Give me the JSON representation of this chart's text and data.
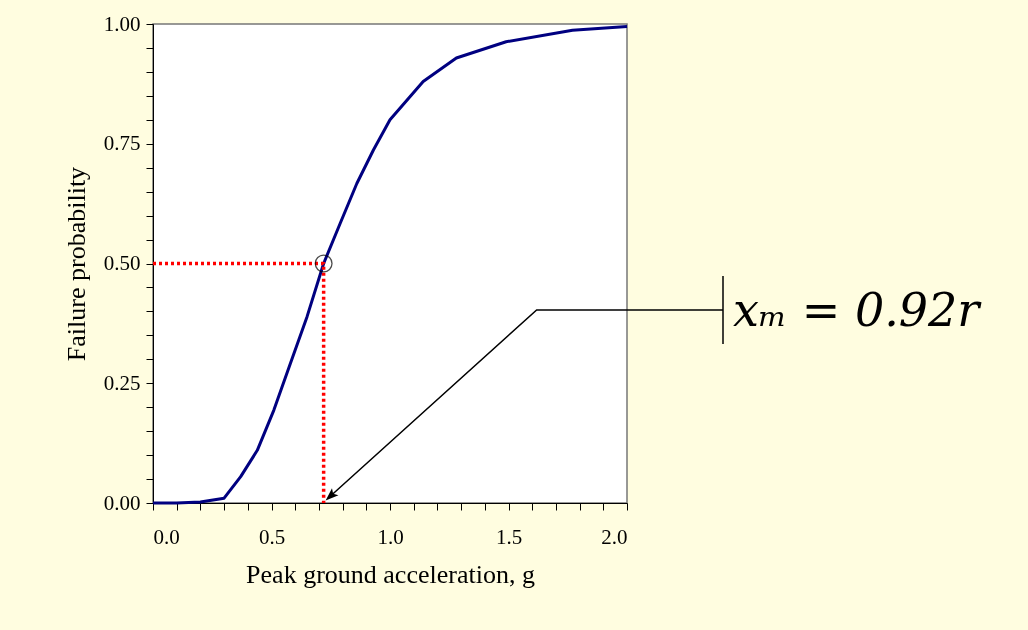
{
  "chart_data": {
    "type": "line",
    "xlabel": "Peak ground acceleration, g",
    "ylabel": "Failure probability",
    "xlim": [
      0,
      2.0
    ],
    "ylim": [
      0,
      1.0
    ],
    "xticks": [
      {
        "value": 0,
        "label": "0.0"
      },
      {
        "value": 0.1,
        "label": null
      },
      {
        "value": 0.2,
        "label": null
      },
      {
        "value": 0.3,
        "label": null
      },
      {
        "value": 0.4,
        "label": null
      },
      {
        "value": 0.5,
        "label": "0.5"
      },
      {
        "value": 0.6,
        "label": null
      },
      {
        "value": 0.7,
        "label": null
      },
      {
        "value": 0.8,
        "label": null
      },
      {
        "value": 0.9,
        "label": null
      },
      {
        "value": 1.0,
        "label": "1.0"
      },
      {
        "value": 1.1,
        "label": null
      },
      {
        "value": 1.2,
        "label": null
      },
      {
        "value": 1.3,
        "label": null
      },
      {
        "value": 1.4,
        "label": null
      },
      {
        "value": 1.5,
        "label": "1.5"
      },
      {
        "value": 1.6,
        "label": null
      },
      {
        "value": 1.7,
        "label": null
      },
      {
        "value": 1.8,
        "label": null
      },
      {
        "value": 1.9,
        "label": null
      },
      {
        "value": 2.0,
        "label": "2.0"
      }
    ],
    "yticks": [
      {
        "value": 0,
        "label": "0.00"
      },
      {
        "value": 0.05,
        "label": null
      },
      {
        "value": 0.1,
        "label": null
      },
      {
        "value": 0.15,
        "label": null
      },
      {
        "value": 0.2,
        "label": null
      },
      {
        "value": 0.25,
        "label": "0.25"
      },
      {
        "value": 0.3,
        "label": null
      },
      {
        "value": 0.35,
        "label": null
      },
      {
        "value": 0.4,
        "label": null
      },
      {
        "value": 0.45,
        "label": null
      },
      {
        "value": 0.5,
        "label": "0.50"
      },
      {
        "value": 0.55,
        "label": null
      },
      {
        "value": 0.6,
        "label": null
      },
      {
        "value": 0.65,
        "label": null
      },
      {
        "value": 0.7,
        "label": null
      },
      {
        "value": 0.75,
        "label": "0.75"
      },
      {
        "value": 0.8,
        "label": null
      },
      {
        "value": 0.85,
        "label": null
      },
      {
        "value": 0.9,
        "label": null
      },
      {
        "value": 0.95,
        "label": null
      },
      {
        "value": 1.0,
        "label": "1.00"
      }
    ],
    "grid": false,
    "series": [
      {
        "color": "#000080",
        "line_style": "solid",
        "marker": "none",
        "x": [
          0,
          0.1,
          0.2,
          0.3,
          0.37,
          0.44,
          0.51,
          0.58,
          0.65,
          0.72,
          0.79,
          0.86,
          0.93,
          1.0,
          1.14,
          1.28,
          1.49,
          1.77,
          2.0
        ],
        "values": [
          0,
          0,
          0.002,
          0.01,
          0.055,
          0.11,
          0.194,
          0.292,
          0.389,
          0.5,
          0.584,
          0.667,
          0.737,
          0.8,
          0.88,
          0.929,
          0.963,
          0.987,
          0.995
        ]
      },
      {
        "type": "line",
        "color": "#ff0000",
        "line_style": "dotted",
        "marker": "none",
        "x": [
          0,
          0.72,
          0.72
        ],
        "values": [
          0.5,
          0.5,
          0
        ]
      },
      {
        "type": "scatter",
        "color": "#000000",
        "marker": "circle",
        "x": [
          0.72
        ],
        "values": [
          0.5
        ]
      }
    ],
    "annotations": [
      "xₘ = 0.92r"
    ]
  }
}
